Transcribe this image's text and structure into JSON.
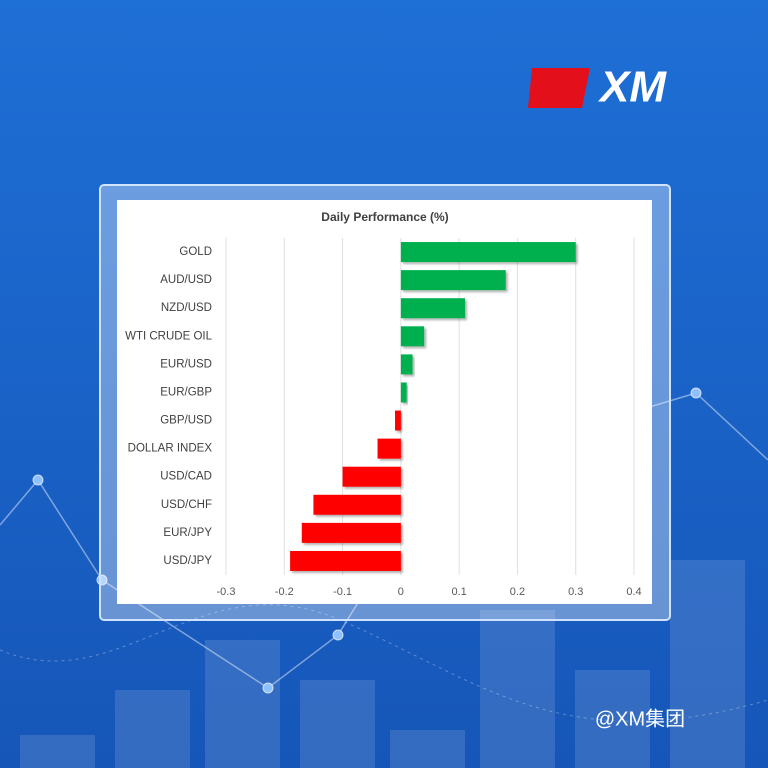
{
  "brand": "XM",
  "watermark": "@XM集团",
  "chart_data": {
    "type": "barh",
    "title": "Daily Performance (%)",
    "categories": [
      "GOLD",
      "AUD/USD",
      "NZD/USD",
      "WTI CRUDE OIL",
      "EUR/USD",
      "EUR/GBP",
      "GBP/USD",
      "DOLLAR INDEX",
      "USD/CAD",
      "USD/CHF",
      "EUR/JPY",
      "USD/JPY"
    ],
    "values": [
      0.3,
      0.18,
      0.11,
      0.04,
      0.02,
      0.01,
      -0.01,
      -0.04,
      -0.1,
      -0.15,
      -0.17,
      -0.19
    ],
    "color_positive": "#00b050",
    "color_negative": "#ff0000",
    "xlim": [
      -0.3,
      0.4
    ],
    "xticks": [
      -0.3,
      -0.2,
      -0.1,
      0,
      0.1,
      0.2,
      0.3,
      0.4
    ],
    "grid": true
  }
}
